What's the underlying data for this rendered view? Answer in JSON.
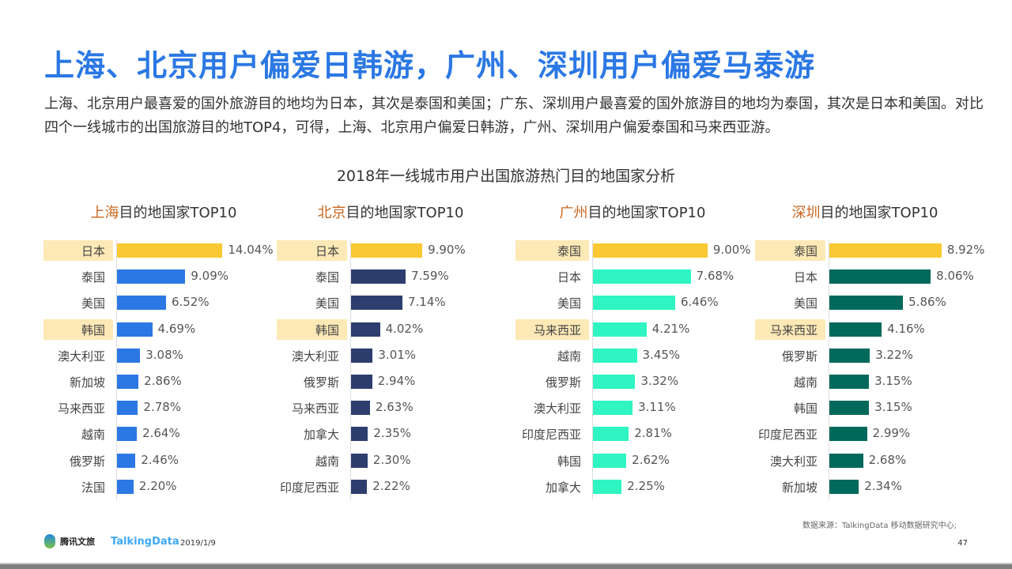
{
  "title": "上海、北京用户偏爱日韩游，广州、深圳用户偏爱马泰游",
  "description": "上海、北京用户最喜爱的国外旅游目的地均为日本，其次是泰国和美国；广东、深圳用户最喜爱的国外旅游目的地均为泰国，其次是日本和美国。对比四个一线城市的出国旅游目的地TOP4，可得，上海、北京用户偏爱日韩游，广州、深圳用户偏爱泰国和马来西亚游。",
  "chart_data": [
    {
      "type": "bar",
      "city": "上海",
      "title_suffix": "目的地国家TOP10",
      "color": "#2b78e4",
      "top_color": "#f9c833",
      "categories": [
        "日本",
        "泰国",
        "美国",
        "韩国",
        "澳大利亚",
        "新加坡",
        "马来西亚",
        "越南",
        "俄罗斯",
        "法国"
      ],
      "values": [
        14.04,
        9.09,
        6.52,
        4.69,
        3.08,
        2.86,
        2.78,
        2.64,
        2.46,
        2.2
      ],
      "labels": [
        "14.04%",
        "9.09%",
        "6.52%",
        "4.69%",
        "3.08%",
        "2.86%",
        "2.78%",
        "2.64%",
        "2.46%",
        "2.20%"
      ],
      "highlight": [
        0,
        3
      ]
    },
    {
      "type": "bar",
      "city": "北京",
      "title_suffix": "目的地国家TOP10",
      "color": "#2d3e6e",
      "top_color": "#f9c833",
      "categories": [
        "日本",
        "泰国",
        "美国",
        "韩国",
        "澳大利亚",
        "俄罗斯",
        "马来西亚",
        "加拿大",
        "越南",
        "印度尼西亚"
      ],
      "values": [
        9.9,
        7.59,
        7.14,
        4.02,
        3.01,
        2.94,
        2.63,
        2.35,
        2.3,
        2.22
      ],
      "labels": [
        "9.90%",
        "7.59%",
        "7.14%",
        "4.02%",
        "3.01%",
        "2.94%",
        "2.63%",
        "2.35%",
        "2.30%",
        "2.22%"
      ],
      "highlight": [
        0,
        3
      ]
    },
    {
      "type": "bar",
      "city": "广州",
      "title_suffix": "目的地国家TOP10",
      "color": "#2ef5c2",
      "top_color": "#f9c833",
      "categories": [
        "泰国",
        "日本",
        "美国",
        "马来西亚",
        "越南",
        "俄罗斯",
        "澳大利亚",
        "印度尼西亚",
        "韩国",
        "加拿大"
      ],
      "values": [
        9.0,
        7.68,
        6.46,
        4.21,
        3.45,
        3.32,
        3.11,
        2.81,
        2.62,
        2.25
      ],
      "labels": [
        "9.00%",
        "7.68%",
        "6.46%",
        "4.21%",
        "3.45%",
        "3.32%",
        "3.11%",
        "2.81%",
        "2.62%",
        "2.25%"
      ],
      "highlight": [
        0,
        3
      ]
    },
    {
      "type": "bar",
      "city": "深圳",
      "title_suffix": "目的地国家TOP10",
      "color": "#00695c",
      "top_color": "#f9c833",
      "categories": [
        "泰国",
        "日本",
        "美国",
        "马来西亚",
        "俄罗斯",
        "越南",
        "韩国",
        "印度尼西亚",
        "澳大利亚",
        "新加坡"
      ],
      "values": [
        8.92,
        8.06,
        5.86,
        4.16,
        3.22,
        3.15,
        3.15,
        2.99,
        2.68,
        2.34
      ],
      "labels": [
        "8.92%",
        "8.06%",
        "5.86%",
        "4.16%",
        "3.22%",
        "3.15%",
        "3.15%",
        "2.99%",
        "2.68%",
        "2.34%"
      ],
      "highlight": [
        0,
        3
      ]
    }
  ],
  "chart_title": "2018年一线城市用户出国旅游热门目的地国家分析",
  "footer": {
    "source": "数据来源：TalkingData  移动数据研究中心;",
    "logo1": "腾讯文旅",
    "logo2": "TalkingData",
    "date": "2019/1/9",
    "page": "47"
  }
}
